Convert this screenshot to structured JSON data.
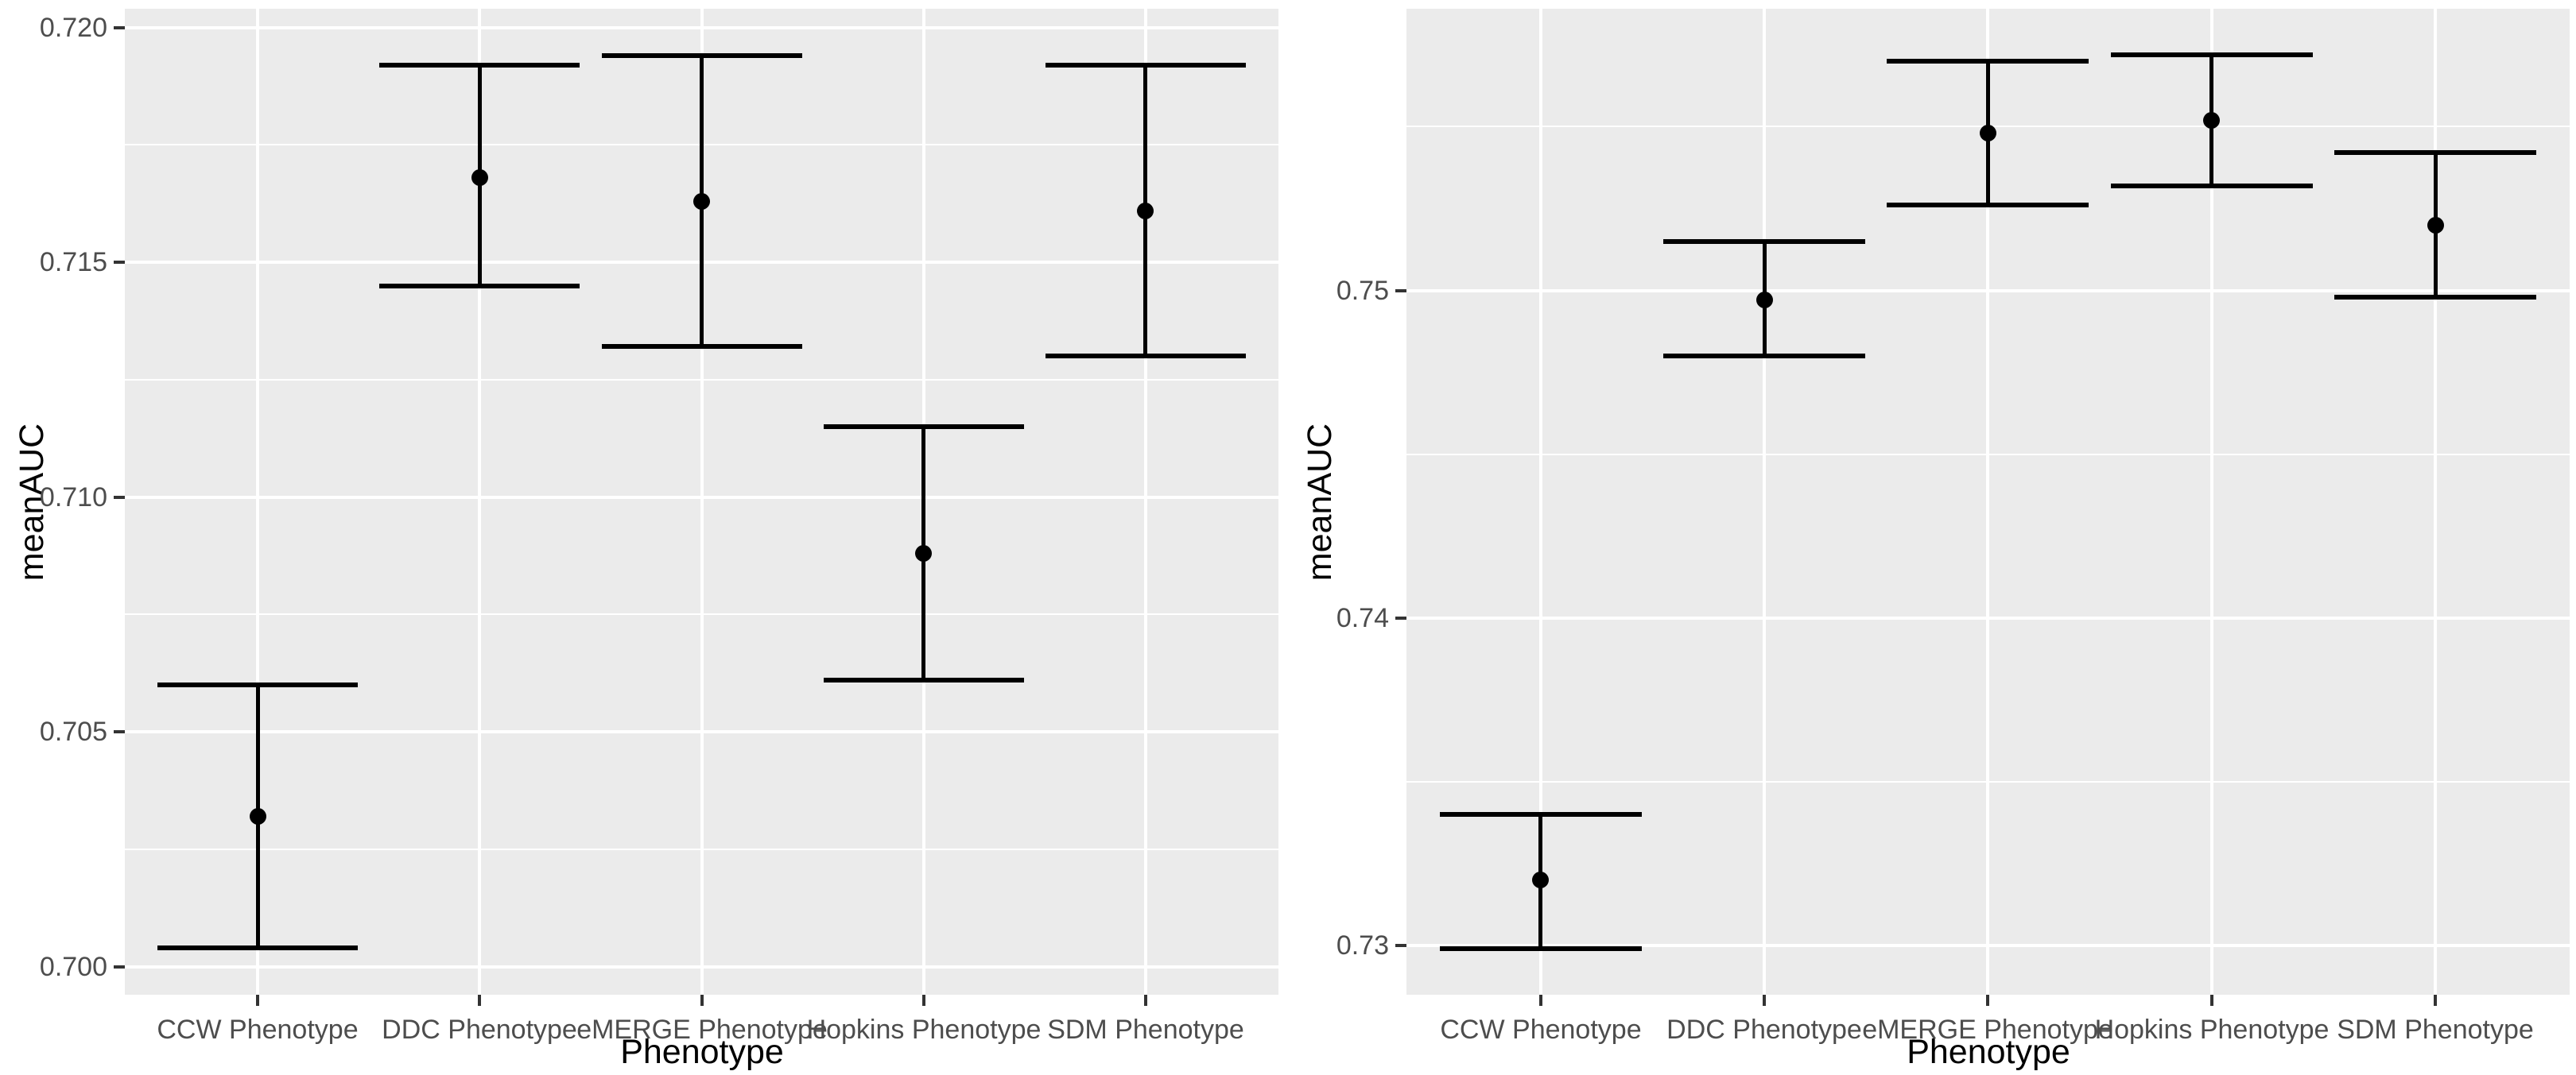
{
  "colors": {
    "page_background": "#ffffff",
    "panel_background": "#ebebeb",
    "grid_major": "#ffffff",
    "grid_minor": "#ffffff",
    "axis_text": "#4d4d4d",
    "axis_title": "#000000",
    "tick_mark": "#333333",
    "data_color": "#000000"
  },
  "chart_data": [
    {
      "type": "pointrange",
      "position": "left",
      "title": "",
      "xlabel": "Phenotype",
      "ylabel": "meanAUC",
      "categories": [
        "CCW Phenotype",
        "DDC Phenotype",
        "eMERGE Phenotype",
        "Hopkins Phenotype",
        "SDM Phenotype"
      ],
      "series": [
        {
          "name": "meanAUC",
          "means": [
            0.7032,
            0.7168,
            0.7163,
            0.7088,
            0.7161
          ],
          "lower": [
            0.7004,
            0.7145,
            0.7132,
            0.7061,
            0.713
          ],
          "upper": [
            0.706,
            0.7192,
            0.7194,
            0.7115,
            0.7192
          ]
        }
      ],
      "yticks": {
        "values": [
          0.7,
          0.705,
          0.71,
          0.715,
          0.72
        ],
        "labels": [
          "0.700",
          "0.705",
          "0.710",
          "0.715",
          "0.720"
        ]
      },
      "yticks_minor": [
        0.7025,
        0.7075,
        0.7125,
        0.7175
      ],
      "ylim": [
        0.6994,
        0.7204
      ],
      "grid": "major+minor",
      "legend": "none"
    },
    {
      "type": "pointrange",
      "position": "right",
      "title": "",
      "xlabel": "Phenotype",
      "ylabel": "meanAUC",
      "categories": [
        "CCW Phenotype",
        "DDC Phenotype",
        "eMERGE Phenotype",
        "Hopkins Phenotype",
        "SDM Phenotype"
      ],
      "series": [
        {
          "name": "meanAUC",
          "means": [
            0.732,
            0.7497,
            0.7548,
            0.7552,
            0.752
          ],
          "lower": [
            0.7299,
            0.748,
            0.7526,
            0.7532,
            0.7498
          ],
          "upper": [
            0.734,
            0.7515,
            0.757,
            0.7572,
            0.7542
          ]
        }
      ],
      "yticks": {
        "values": [
          0.73,
          0.74,
          0.75
        ],
        "labels": [
          "0.73",
          "0.74",
          "0.75"
        ]
      },
      "yticks_minor": [
        0.735,
        0.745,
        0.755
      ],
      "ylim": [
        0.7285,
        0.7586
      ],
      "grid": "major+minor",
      "legend": "none"
    }
  ]
}
